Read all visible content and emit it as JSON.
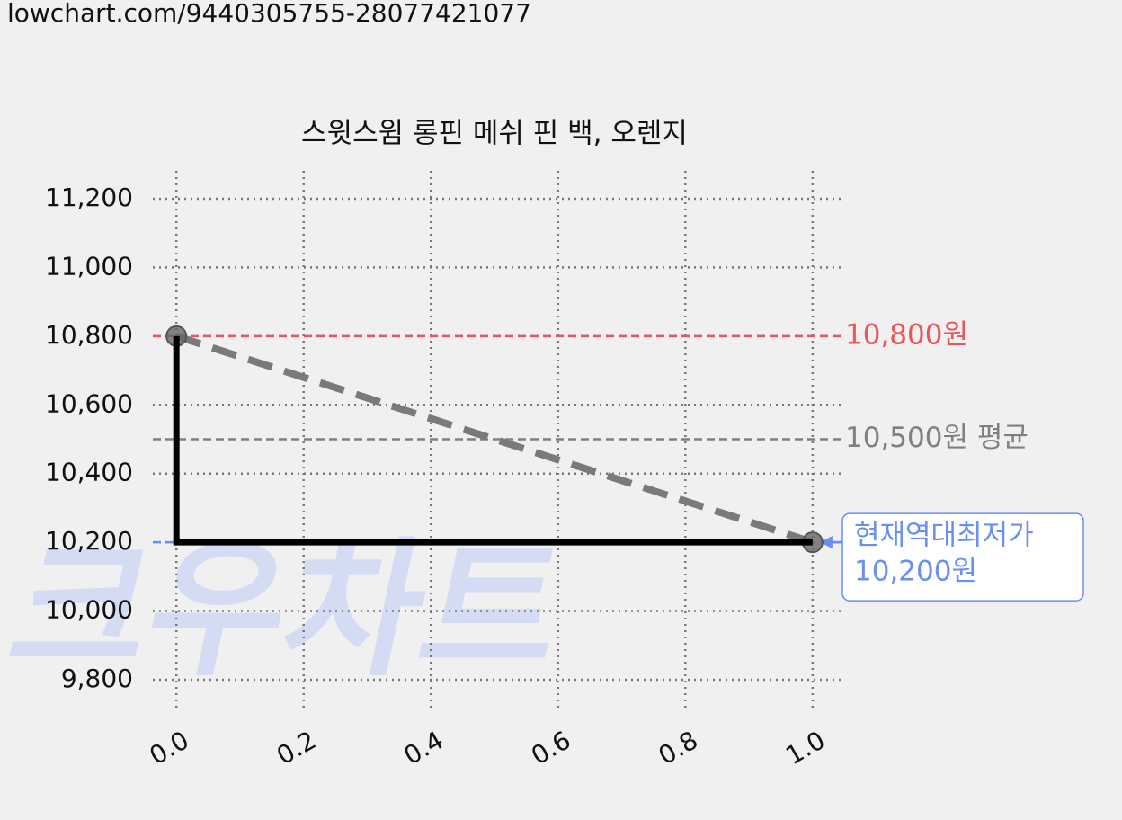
{
  "url": "lowchart.com/9440305755-28077421077",
  "chart_data": {
    "type": "line",
    "title": "스윗스윔 롱핀 메쉬 핀 백, 오렌지",
    "watermark": "크우차트",
    "x": [
      0,
      1
    ],
    "series": [
      {
        "color": "#7a7a7a",
        "linestyle": "dashed",
        "marker": true,
        "values": [
          10800,
          10200
        ]
      },
      {
        "color": "#000000",
        "linestyle": "solid",
        "drawstyle": "steps-pre",
        "values": [
          10800,
          10200
        ]
      }
    ],
    "hlines": [
      {
        "value": 10800,
        "color": "#e8555a",
        "label": "10,800원"
      },
      {
        "value": 10500,
        "color": "#808080",
        "label": "10,500원 평균"
      },
      {
        "value": 10200,
        "color": "#6a8fef",
        "label_lines": [
          "현재역대최저가",
          "10,200원"
        ]
      }
    ],
    "xlim": [
      -0.037,
      1.044
    ],
    "ylim": [
      9711,
      11281
    ],
    "xticks": [
      {
        "value": 0,
        "label": "0.0"
      },
      0.2,
      0.4,
      0.6,
      0.8,
      {
        "value": 1,
        "label": "1.0"
      }
    ],
    "yticks": [
      {
        "value": 9800,
        "label": "9,800"
      },
      {
        "value": 10000,
        "label": "10,000"
      },
      {
        "value": 10200,
        "label": "10,200"
      },
      {
        "value": 10400,
        "label": "10,400"
      },
      {
        "value": 10600,
        "label": "10,600"
      },
      {
        "value": 10800,
        "label": "10,800"
      },
      {
        "value": 11000,
        "label": "11,000"
      },
      {
        "value": 11200,
        "label": "11,200"
      }
    ],
    "grid": true
  }
}
